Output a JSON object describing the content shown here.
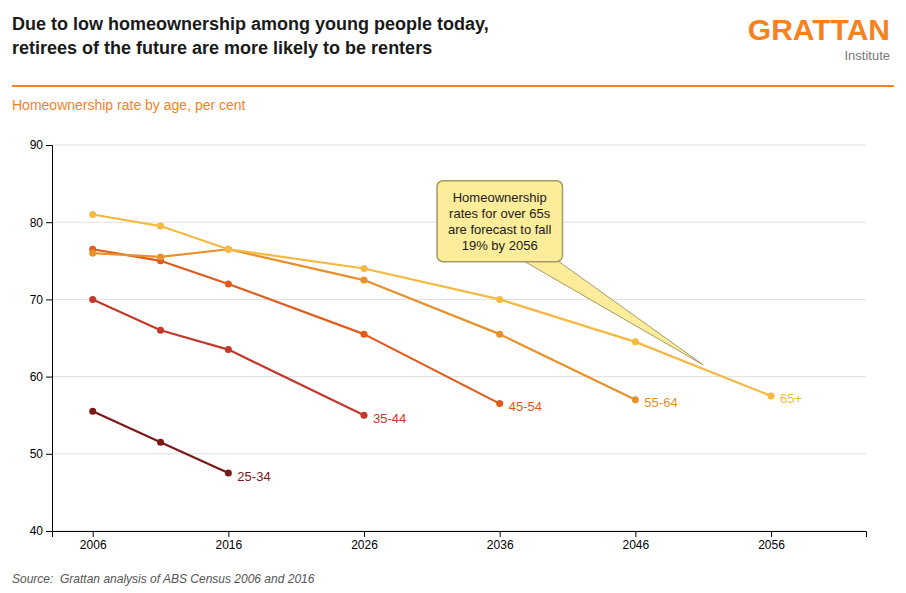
{
  "chart_data": {
    "type": "line",
    "title": "Due to low homeownership among young people today,\nretirees of the future are more likely to be renters",
    "subtitle": "Homeownership rate by age, per cent",
    "source": "Source:  Grattan analysis of ABS Census 2006 and 2016",
    "logo_text": "GRATTAN",
    "logo_subtext": "Institute",
    "annotation": "Homeownership\nrates for over 65s\nare forecast to fall\n19% by 2056",
    "accent_color": "#F5821F",
    "annotation_color": "#FDED9B",
    "xlim": [
      2003,
      2063
    ],
    "ylim": [
      40,
      90
    ],
    "xticks": [
      2006,
      2016,
      2026,
      2036,
      2046,
      2056
    ],
    "yticks": [
      40,
      50,
      60,
      70,
      80,
      90
    ],
    "grid": true,
    "marker": "circle",
    "series": [
      {
        "name": "25-34",
        "color": "#7B1818",
        "x": [
          2006,
          2011,
          2016
        ],
        "values": [
          55.5,
          51.5,
          47.5
        ]
      },
      {
        "name": "35-44",
        "color": "#C1392B",
        "x": [
          2006,
          2011,
          2016,
          2026
        ],
        "values": [
          70.0,
          66.0,
          63.5,
          55.0
        ]
      },
      {
        "name": "45-54",
        "color": "#E05A1A",
        "x": [
          2006,
          2011,
          2016,
          2026,
          2036
        ],
        "values": [
          76.5,
          75.0,
          72.0,
          65.5,
          56.5
        ]
      },
      {
        "name": "55-64",
        "color": "#E8902A",
        "x": [
          2006,
          2011,
          2016,
          2026,
          2036,
          2046
        ],
        "values": [
          76.0,
          75.5,
          76.5,
          72.5,
          65.5,
          57.0
        ]
      },
      {
        "name": "65+",
        "color": "#F5B942",
        "x": [
          2006,
          2011,
          2016,
          2026,
          2036,
          2046,
          2056
        ],
        "values": [
          81.0,
          79.5,
          76.5,
          74.0,
          70.0,
          64.5,
          57.5
        ]
      }
    ]
  }
}
